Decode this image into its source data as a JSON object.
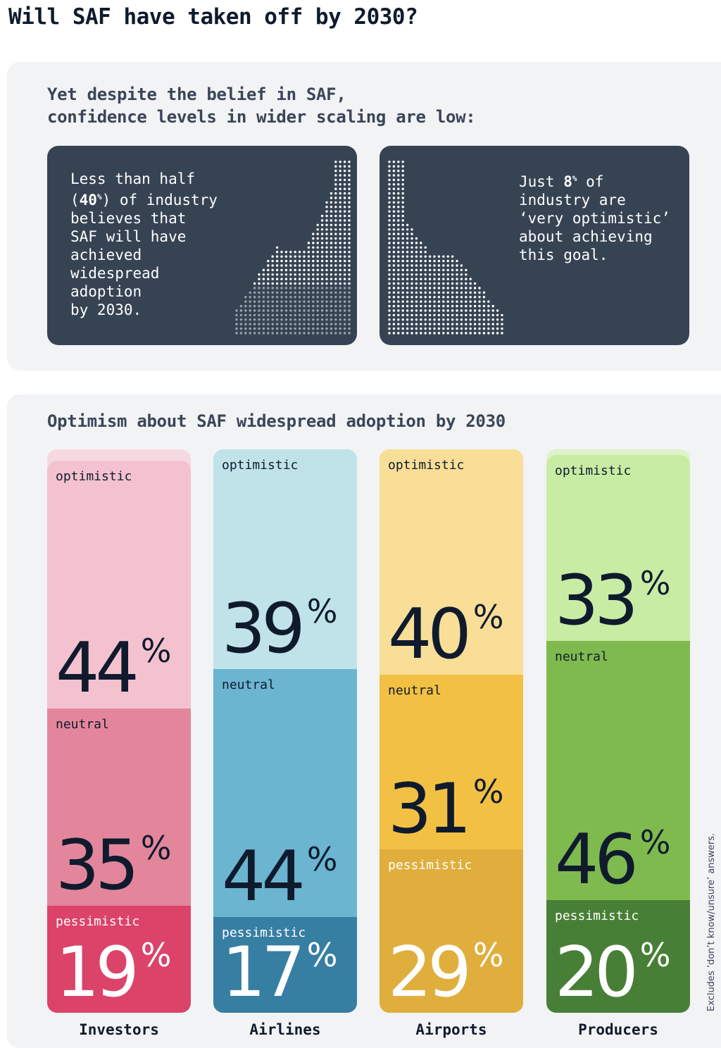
{
  "title": "Will SAF have taken off by 2030?",
  "intro": {
    "heading_line1": "Yet despite the belief in SAF,",
    "heading_line2": "confidence levels in wider scaling are low:"
  },
  "cards": {
    "left": {
      "lines": [
        "Less than half",
        "(40%) of industry",
        "believes that",
        "SAF will have",
        "achieved",
        "widespread",
        "adoption",
        "by 2030."
      ],
      "icon": "dotted-upward-curve"
    },
    "right": {
      "lines": [
        "Just 8% of",
        "industry are",
        "‘very optimistic’",
        "about achieving",
        "this goal."
      ],
      "icon": "dotted-downward-curve"
    }
  },
  "chart_data": {
    "type": "bar",
    "stacked": true,
    "title": "Optimism about SAF widespread adoption by 2030",
    "categories": [
      "Investors",
      "Airlines",
      "Airports",
      "Producers"
    ],
    "series": [
      {
        "name": "optimistic",
        "values": [
          44,
          39,
          40,
          33
        ]
      },
      {
        "name": "neutral",
        "values": [
          35,
          44,
          31,
          46
        ]
      },
      {
        "name": "pessimistic",
        "values": [
          19,
          17,
          29,
          20
        ]
      }
    ],
    "unit": "%",
    "colors": {
      "Investors": {
        "optimistic": "#f4c2cf",
        "neutral": "#e3869c",
        "pessimistic": "#dc4369",
        "track": "#f7d9e1"
      },
      "Airlines": {
        "optimistic": "#c0e3ea",
        "neutral": "#6bb5d1",
        "pessimistic": "#377ea3",
        "track": "#c0e3ea"
      },
      "Airports": {
        "optimistic": "#f8de96",
        "neutral": "#f2c043",
        "pessimistic": "#e0ae3d",
        "track": "#f8de96"
      },
      "Producers": {
        "optimistic": "#c9eca4",
        "neutral": "#7fba4f",
        "pessimistic": "#487f36",
        "track": "#dff2cb"
      }
    },
    "footnote": "Excludes ‘don’t know/unsure’ answers."
  }
}
